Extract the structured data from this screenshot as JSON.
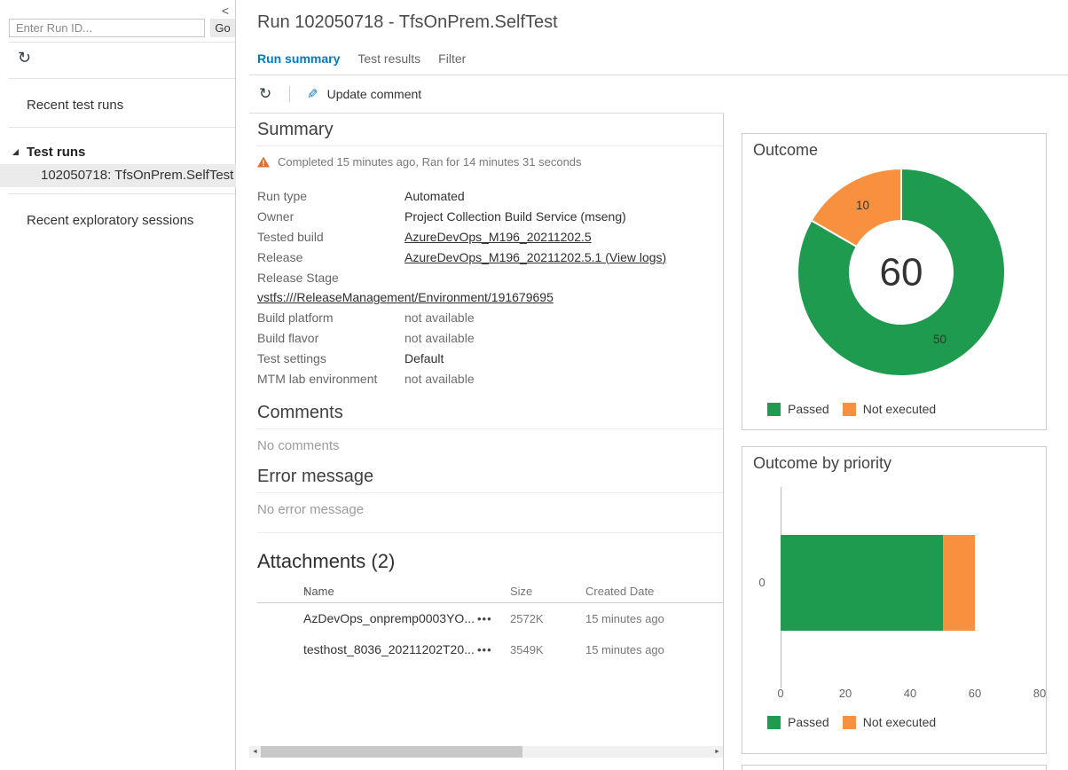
{
  "icons": {
    "sidebar_collapse": "<",
    "refresh": "↻",
    "pencil": "✎",
    "warning_mark": "!",
    "more_actions": "•••",
    "scroll_left": "◄",
    "scroll_right": "►"
  },
  "sidebar": {
    "run_id_placeholder": "Enter Run ID...",
    "go_label": "Go",
    "recent_test_runs": "Recent test runs",
    "tree_header": "Test runs",
    "selected_run": "102050718: TfsOnPrem.SelfTest",
    "recent_exploratory": "Recent exploratory sessions"
  },
  "header": {
    "title": "Run 102050718 - TfsOnPrem.SelfTest",
    "tabs": [
      {
        "label": "Run summary",
        "active": true
      },
      {
        "label": "Test results",
        "active": false
      },
      {
        "label": "Filter",
        "active": false
      }
    ],
    "toolbar": {
      "update_comment_label": "Update comment"
    }
  },
  "summary": {
    "heading": "Summary",
    "status_text": "Completed 15 minutes ago, Ran for 14 minutes 31 seconds",
    "fields": [
      {
        "label": "Run type",
        "value": "Automated",
        "style": "dark"
      },
      {
        "label": "Owner",
        "value": "Project Collection Build Service (mseng)",
        "style": "dark"
      },
      {
        "label": "Tested build",
        "value": "AzureDevOps_M196_20211202.5",
        "style": "link"
      },
      {
        "label": "Release",
        "value": "AzureDevOps_M196_20211202.5.1 (View logs)",
        "style": "link"
      },
      {
        "label": "Release Stage",
        "value": "vstfs:///ReleaseManagement/Environment/191679695",
        "style": "link-block"
      },
      {
        "label": "Build platform",
        "value": "not available",
        "style": "muted"
      },
      {
        "label": "Build flavor",
        "value": "not available",
        "style": "muted"
      },
      {
        "label": "Test settings",
        "value": "Default",
        "style": "dark"
      },
      {
        "label": "MTM lab environment",
        "value": "not available",
        "style": "muted"
      }
    ]
  },
  "comments": {
    "heading": "Comments",
    "empty_text": "No comments"
  },
  "error_message": {
    "heading": "Error message",
    "empty_text": "No error message"
  },
  "attachments": {
    "heading": "Attachments (2)",
    "columns": [
      "Name",
      "Size",
      "Created Date"
    ],
    "sort_icon": "↑",
    "rows": [
      {
        "name": "AzDevOps_onpremp0003YO...",
        "size": "2572K",
        "created": "15 minutes ago"
      },
      {
        "name": "testhost_8036_20211202T20...",
        "size": "3549K",
        "created": "15 minutes ago"
      }
    ]
  },
  "colors": {
    "passed_green": "#1e9b4f",
    "not_executed_orange": "#f8913f",
    "accent_blue": "#007acc",
    "warning_orange": "#d9732a",
    "card_border": "#cccccc"
  },
  "chart_data": [
    {
      "type": "pie",
      "subtype": "donut",
      "title": "Outcome",
      "total": 60,
      "center_label": "60",
      "series": [
        {
          "name": "Passed",
          "value": 50,
          "color": "#1e9b4f"
        },
        {
          "name": "Not executed",
          "value": 10,
          "color": "#f8913f"
        }
      ],
      "legend_position": "bottom"
    },
    {
      "type": "bar",
      "orientation": "horizontal",
      "stacked": true,
      "title": "Outcome by priority",
      "categories": [
        "0"
      ],
      "series": [
        {
          "name": "Passed",
          "values": [
            50
          ],
          "color": "#1e9b4f"
        },
        {
          "name": "Not executed",
          "values": [
            10
          ],
          "color": "#f8913f"
        }
      ],
      "xlabel": "",
      "ylabel": "",
      "xlim": [
        0,
        80
      ],
      "xticks": [
        0,
        20,
        40,
        60,
        80
      ],
      "legend_position": "bottom",
      "grid": false
    }
  ]
}
